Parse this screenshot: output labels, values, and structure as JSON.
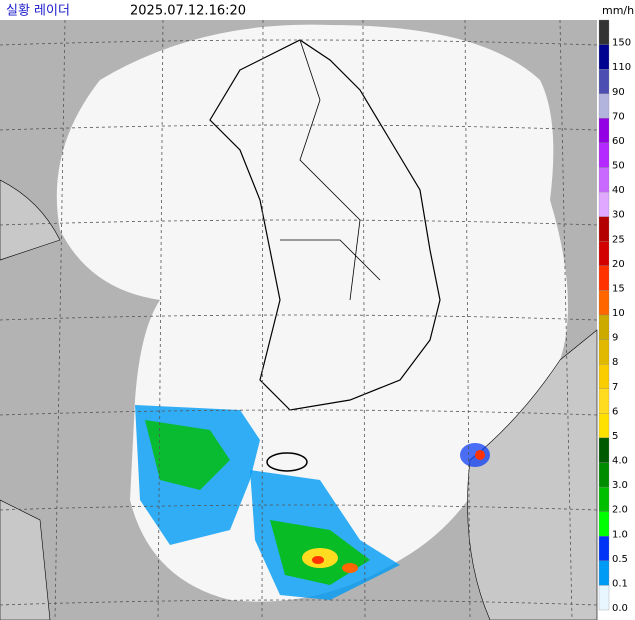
{
  "header": {
    "title": "실황 레이더",
    "time": "2025.07.12.16:20",
    "unit": "mm/h"
  },
  "legend": [
    {
      "label": "150",
      "color": "#333333"
    },
    {
      "label": "110",
      "color": "#000390"
    },
    {
      "label": "90",
      "color": "#4c4eb1"
    },
    {
      "label": "70",
      "color": "#b3b4de"
    },
    {
      "label": "60",
      "color": "#9300e4"
    },
    {
      "label": "50",
      "color": "#b329ff"
    },
    {
      "label": "40",
      "color": "#c969ff"
    },
    {
      "label": "30",
      "color": "#e0a9ff"
    },
    {
      "label": "25",
      "color": "#b40000"
    },
    {
      "label": "20",
      "color": "#d20000"
    },
    {
      "label": "15",
      "color": "#ff3200"
    },
    {
      "label": "10",
      "color": "#ff6600"
    },
    {
      "label": "9",
      "color": "#ccaa00"
    },
    {
      "label": "8",
      "color": "#e0b900"
    },
    {
      "label": "7",
      "color": "#f9cd00"
    },
    {
      "label": "6",
      "color": "#ffdc1f"
    },
    {
      "label": "5",
      "color": "#ffe100"
    },
    {
      "label": "4.0",
      "color": "#005a00"
    },
    {
      "label": "3.0",
      "color": "#008c00"
    },
    {
      "label": "2.0",
      "color": "#00be00"
    },
    {
      "label": "1.0",
      "color": "#00ff00"
    },
    {
      "label": "0.5",
      "color": "#0033f5"
    },
    {
      "label": "0.1",
      "color": "#009bf5"
    },
    {
      "label": "0.0",
      "color": "#e8f6ff"
    }
  ]
}
